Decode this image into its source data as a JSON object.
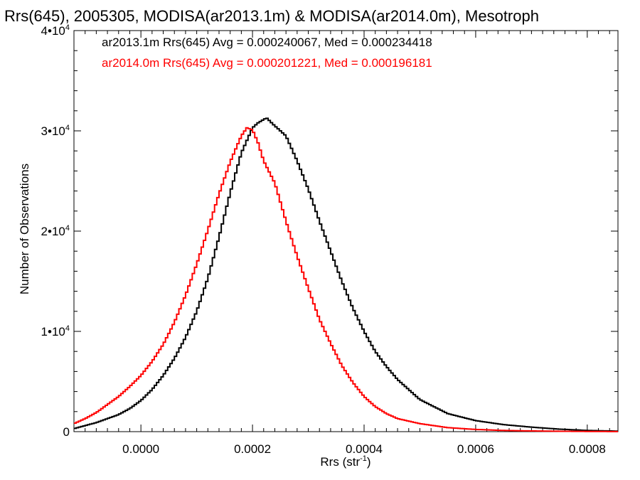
{
  "chart_data": {
    "type": "line",
    "title": "Rrs(645), 2005305, MODISA(ar2013.1m) & MODISA(ar2014.0m), Mesotroph",
    "xlabel": "Rrs (str",
    "xlabel_sup": "-1",
    "xlabel_tail": ")",
    "ylabel": "Number of Observations",
    "xlim": [
      -0.00012,
      0.000855
    ],
    "ylim": [
      0,
      40000
    ],
    "xticks": [
      {
        "value": 0.0,
        "label": "0.0000"
      },
      {
        "value": 0.0002,
        "label": "0.0002"
      },
      {
        "value": 0.0004,
        "label": "0.0004"
      },
      {
        "value": 0.0006,
        "label": "0.0006"
      },
      {
        "value": 0.0008,
        "label": "0.0008"
      }
    ],
    "yticks": [
      {
        "value": 0,
        "mant": "0",
        "exp": ""
      },
      {
        "value": 10000,
        "mant": "1•10",
        "exp": "4"
      },
      {
        "value": 20000,
        "mant": "2•10",
        "exp": "4"
      },
      {
        "value": 30000,
        "mant": "3•10",
        "exp": "4"
      },
      {
        "value": 40000,
        "mant": "4•10",
        "exp": "4"
      }
    ],
    "grid": false,
    "legend_placement": "top-left",
    "series": [
      {
        "name": "ar2013.1m Rrs(645) Avg = 0.000240067, Med = 0.000234418",
        "color": "#000000",
        "x": [
          -0.00012,
          -0.0001,
          -8e-05,
          -6e-05,
          -4e-05,
          -2e-05,
          0.0,
          2e-05,
          4e-05,
          6e-05,
          8e-05,
          0.0001,
          0.00012,
          0.00014,
          0.00016,
          0.00018,
          0.0002,
          0.00021,
          0.000225,
          0.00024,
          0.00026,
          0.00028,
          0.0003,
          0.00032,
          0.00034,
          0.00036,
          0.00038,
          0.0004,
          0.00042,
          0.00044,
          0.00046,
          0.00048,
          0.0005,
          0.00055,
          0.0006,
          0.00065,
          0.0007,
          0.00075,
          0.0008,
          0.000855
        ],
        "y": [
          300,
          600,
          900,
          1300,
          1700,
          2300,
          3100,
          4200,
          5600,
          7300,
          9400,
          12000,
          15300,
          19400,
          23800,
          27800,
          30300,
          30800,
          31300,
          30500,
          29500,
          27000,
          24200,
          21000,
          18000,
          15000,
          12300,
          10000,
          8000,
          6500,
          5200,
          4200,
          3200,
          1800,
          1100,
          700,
          450,
          250,
          120,
          50
        ]
      },
      {
        "name": "ar2014.0m Rrs(645) Avg = 0.000201221, Med = 0.000196181",
        "color": "#ff0000",
        "x": [
          -0.00012,
          -0.0001,
          -8e-05,
          -6e-05,
          -4e-05,
          -2e-05,
          0.0,
          2e-05,
          4e-05,
          6e-05,
          8e-05,
          0.0001,
          0.00012,
          0.00014,
          0.00016,
          0.00018,
          0.00019,
          0.0002,
          0.00021,
          0.00022,
          0.00024,
          0.00026,
          0.00028,
          0.0003,
          0.00032,
          0.00034,
          0.00036,
          0.00038,
          0.0004,
          0.00042,
          0.00044,
          0.00046,
          0.0005,
          0.00055,
          0.0006,
          0.00065,
          0.0007,
          0.00075,
          0.0008,
          0.000855
        ],
        "y": [
          800,
          1300,
          1900,
          2700,
          3500,
          4500,
          5600,
          7000,
          8700,
          10900,
          13600,
          16700,
          20100,
          23700,
          26900,
          29500,
          30300,
          30100,
          28800,
          27000,
          24800,
          21000,
          17500,
          14300,
          11200,
          8800,
          6600,
          4900,
          3500,
          2500,
          1800,
          1300,
          800,
          400,
          220,
          120,
          70,
          40,
          20,
          10
        ]
      }
    ]
  }
}
